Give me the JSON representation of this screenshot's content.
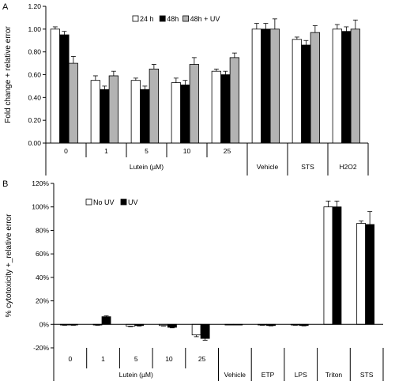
{
  "panel_labels": [
    "A",
    "B"
  ],
  "chart_data": [
    {
      "type": "bar",
      "panel": "A",
      "ylabel": "Fold change + relative error",
      "ylim": [
        0,
        1.2
      ],
      "yticks": [
        "0.00",
        "0.20",
        "0.40",
        "0.60",
        "0.80",
        "1.00",
        "1.20"
      ],
      "grid": false,
      "legend_position": "top-center",
      "categories": [
        "0",
        "1",
        "5",
        "10",
        "25",
        "Vehicle",
        "STS",
        "H2O2"
      ],
      "group_label": "Lutein (µM)",
      "group_span": [
        0,
        4
      ],
      "series": [
        {
          "name": "24 h",
          "color": "#ffffff",
          "values": [
            1.0,
            0.55,
            0.55,
            0.53,
            0.63,
            1.0,
            0.91,
            1.0
          ],
          "errors": [
            0.02,
            0.04,
            0.02,
            0.04,
            0.02,
            0.05,
            0.02,
            0.04
          ]
        },
        {
          "name": "48h",
          "color": "#000000",
          "values": [
            0.95,
            0.47,
            0.47,
            0.51,
            0.6,
            1.0,
            0.86,
            0.98
          ],
          "errors": [
            0.03,
            0.03,
            0.03,
            0.04,
            0.03,
            0.05,
            0.04,
            0.04
          ]
        },
        {
          "name": "48h + UV",
          "color": "#b3b3b3",
          "values": [
            0.7,
            0.59,
            0.65,
            0.69,
            0.75,
            1.0,
            0.97,
            1.0
          ],
          "errors": [
            0.06,
            0.04,
            0.04,
            0.06,
            0.04,
            0.09,
            0.06,
            0.08
          ]
        }
      ]
    },
    {
      "type": "bar",
      "panel": "B",
      "ylabel": "% cytotoxicity +_relative error",
      "ylim": [
        -20,
        120
      ],
      "yticks": [
        "-20%",
        "0%",
        "20%",
        "40%",
        "60%",
        "80%",
        "100%",
        "120%"
      ],
      "grid": false,
      "legend_position": "top-left",
      "categories": [
        "0",
        "1",
        "5",
        "10",
        "25",
        "Vehicle",
        "ETP",
        "LPS",
        "Triton",
        "STS"
      ],
      "group_label": "Lutein (µM)",
      "group_span": [
        0,
        4
      ],
      "series": [
        {
          "name": "No UV",
          "color": "#ffffff",
          "values": [
            -0.5,
            -0.5,
            -1.5,
            -1,
            -9,
            0,
            -0.5,
            -0.5,
            100,
            86
          ],
          "errors": [
            0.3,
            0.3,
            0.5,
            0.5,
            1.5,
            0,
            0.3,
            0.3,
            5,
            2
          ]
        },
        {
          "name": "UV",
          "color": "#000000",
          "values": [
            -0.5,
            6.5,
            -1,
            -2.5,
            -12,
            0,
            -1,
            -1,
            100,
            85
          ],
          "errors": [
            0.3,
            0.8,
            0.5,
            0.5,
            1.5,
            0,
            0.3,
            0.3,
            5,
            11
          ]
        }
      ]
    }
  ]
}
